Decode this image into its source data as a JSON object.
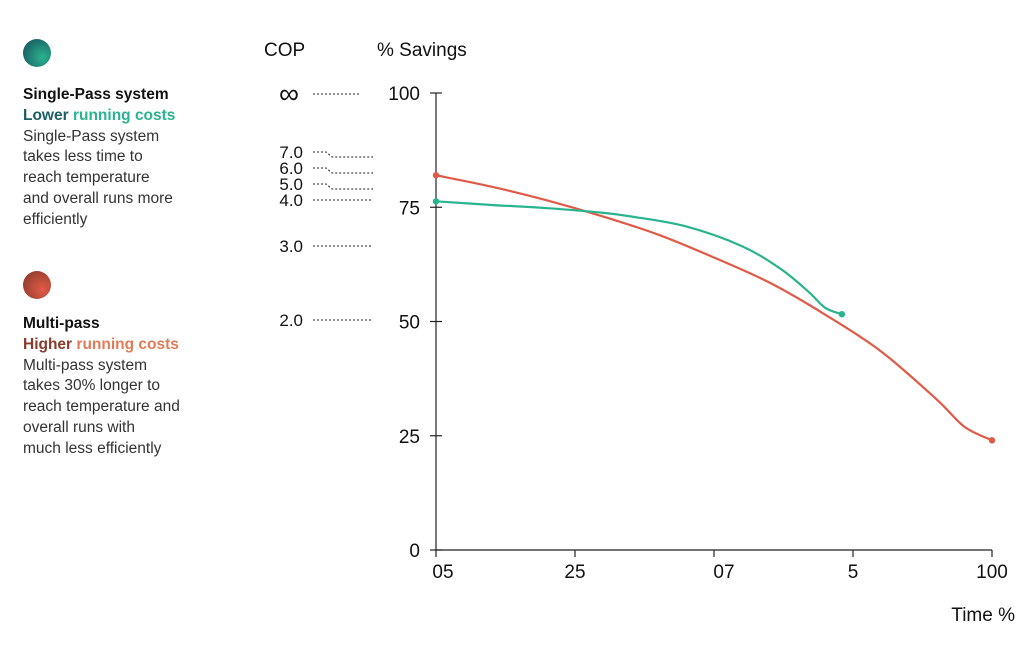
{
  "legend": {
    "single": {
      "title": "Single-Pass system",
      "sub_a": "Lower ",
      "sub_b": "running costs",
      "desc": [
        "Single-Pass system",
        "takes less time to",
        "reach temperature",
        "and overall runs more",
        "efficiently"
      ],
      "color": "#2ab38f",
      "color_dark": "#1a5e63"
    },
    "multi": {
      "title": "Multi-pass",
      "sub_a": "Higher ",
      "sub_b": "running costs",
      "desc": [
        "Multi-pass system",
        "takes 30% longer to",
        "reach temperature and",
        "overall runs with",
        "much less efficiently"
      ],
      "color": "#e05a48",
      "color_dark": "#8a3a2a"
    }
  },
  "cop": {
    "label": "COP",
    "ticks": [
      {
        "label": "∞",
        "at": 100
      },
      {
        "label": "7.0",
        "at": 86
      },
      {
        "label": "6.0",
        "at": 82.5
      },
      {
        "label": "5.0",
        "at": 79
      },
      {
        "label": "4.0",
        "at": 76.5
      },
      {
        "label": "3.0",
        "at": 66.5
      },
      {
        "label": "2.0",
        "at": 50
      }
    ]
  },
  "chart_data": {
    "type": "line",
    "ylabel": "% Savings",
    "xlabel": "Time %",
    "ylim": [
      0,
      100
    ],
    "xlim": [
      0,
      100
    ],
    "yticks": [
      0,
      25,
      50,
      75,
      100
    ],
    "xticks": [
      {
        "label": "05",
        "at": 0
      },
      {
        "label": "25",
        "at": 25
      },
      {
        "label": "07",
        "at": 50
      },
      {
        "label": "5",
        "at": 75
      },
      {
        "label": "100",
        "at": 100
      }
    ],
    "series": [
      {
        "name": "Single-Pass system",
        "color": "#2ab38f",
        "points": [
          [
            0,
            76.3
          ],
          [
            10,
            75.5
          ],
          [
            20,
            74.8
          ],
          [
            30,
            73.8
          ],
          [
            35,
            73.0
          ],
          [
            45,
            70.8
          ],
          [
            55,
            66.5
          ],
          [
            62,
            61.5
          ],
          [
            67,
            56.5
          ],
          [
            70,
            53.0
          ],
          [
            73,
            51.6
          ]
        ]
      },
      {
        "name": "Multi-pass",
        "color": "#e05a48",
        "points": [
          [
            0,
            82.0
          ],
          [
            10,
            79.5
          ],
          [
            20,
            76.5
          ],
          [
            30,
            73.0
          ],
          [
            40,
            69.0
          ],
          [
            50,
            64.0
          ],
          [
            60,
            58.5
          ],
          [
            70,
            51.5
          ],
          [
            80,
            43.5
          ],
          [
            90,
            33.0
          ],
          [
            95,
            27.0
          ],
          [
            100,
            24.0
          ]
        ]
      }
    ]
  }
}
